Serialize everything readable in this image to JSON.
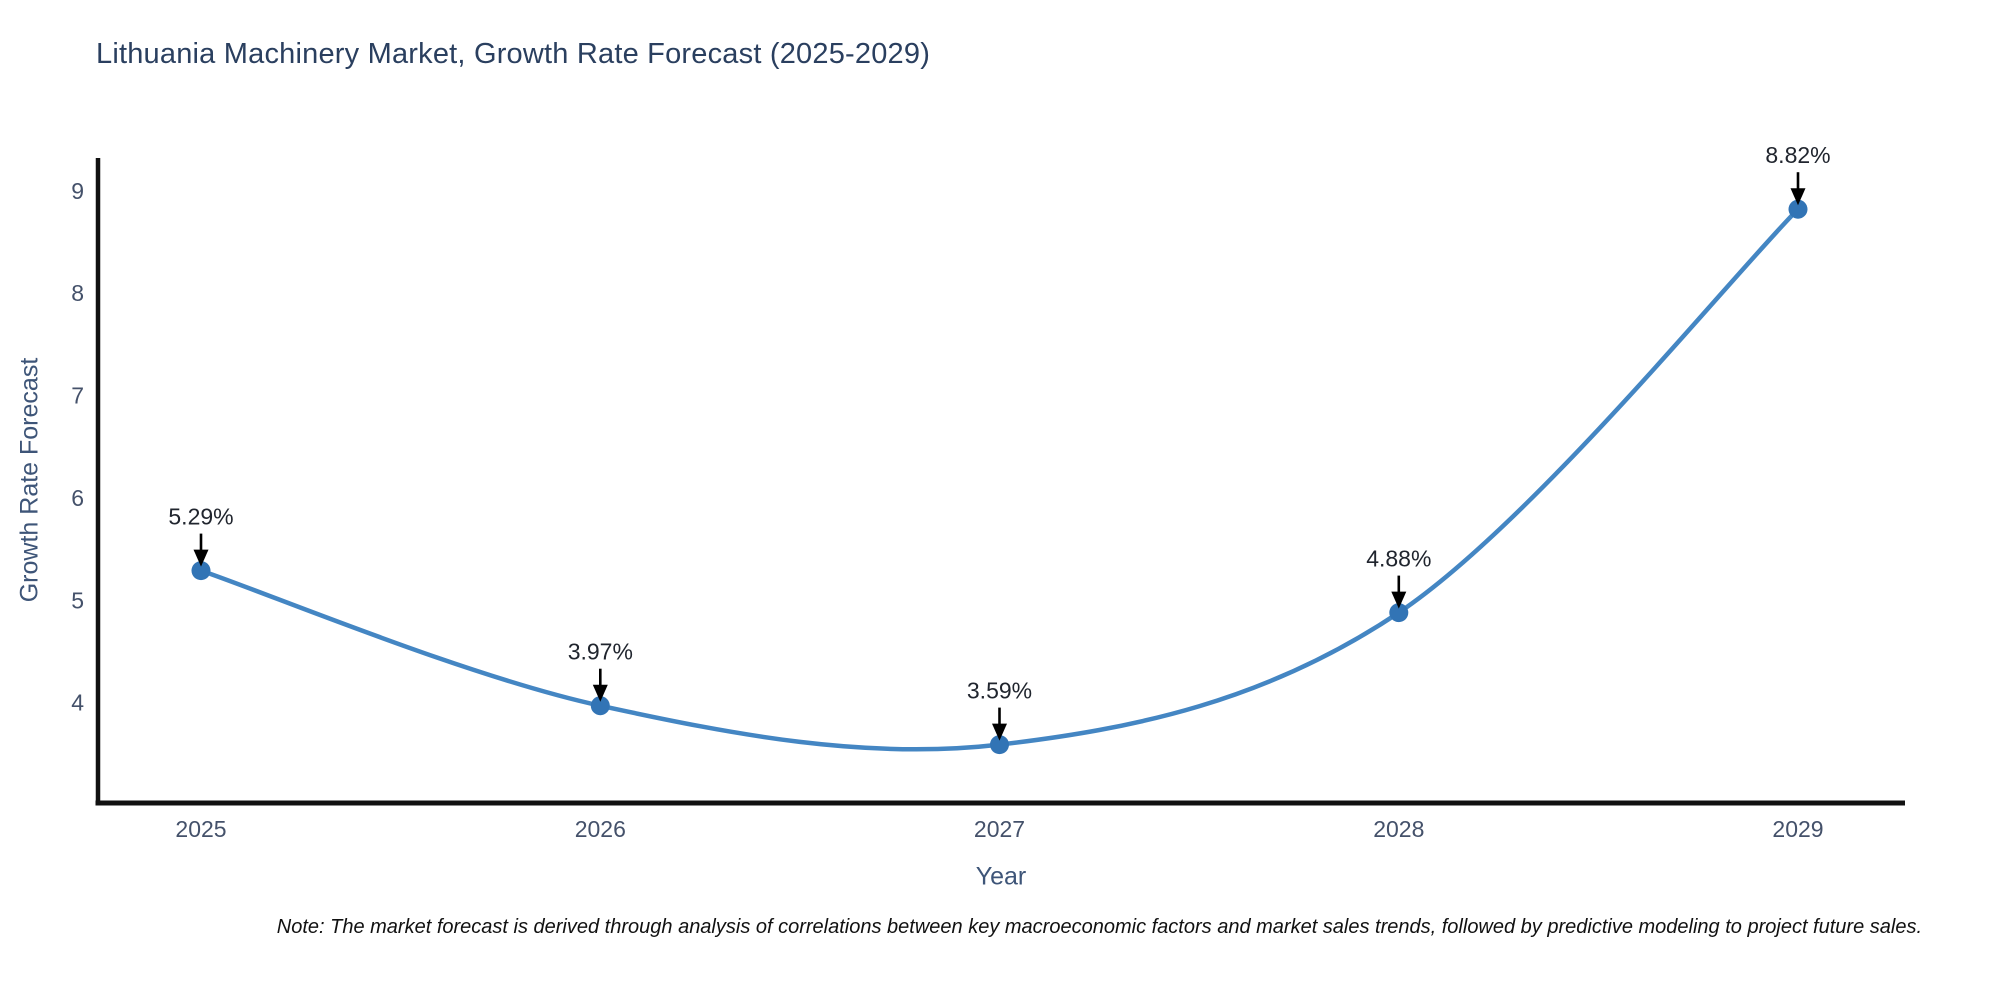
{
  "title": "Lithuania Machinery Market, Growth Rate Forecast (2025-2029)",
  "note": "Note: The market forecast is derived through analysis of correlations between key macroeconomic factors and market sales trends, followed by predictive modeling to project future sales.",
  "chart_data": {
    "type": "line",
    "title": "Lithuania Machinery Market, Growth Rate Forecast (2025-2029)",
    "xlabel": "Year",
    "ylabel": "Growth Rate Forecast",
    "categories": [
      "2025",
      "2026",
      "2027",
      "2028",
      "2029"
    ],
    "values": [
      5.29,
      3.97,
      3.59,
      4.88,
      8.82
    ],
    "point_labels": [
      "5.29%",
      "3.97%",
      "3.59%",
      "4.88%",
      "8.82%"
    ],
    "yticks": [
      4,
      5,
      6,
      7,
      8,
      9
    ],
    "ylim": [
      3.02,
      9.32
    ],
    "line_shape": "spline",
    "grid": false,
    "legend_position": "none",
    "colors": {
      "line": "#4486c3",
      "marker": "#3274b5",
      "axis": "#111111",
      "tick_label": "#44516a",
      "annotation_text": "#20252e",
      "annotation_arrow": "#000000",
      "title_text": "#2a3f5f"
    }
  }
}
